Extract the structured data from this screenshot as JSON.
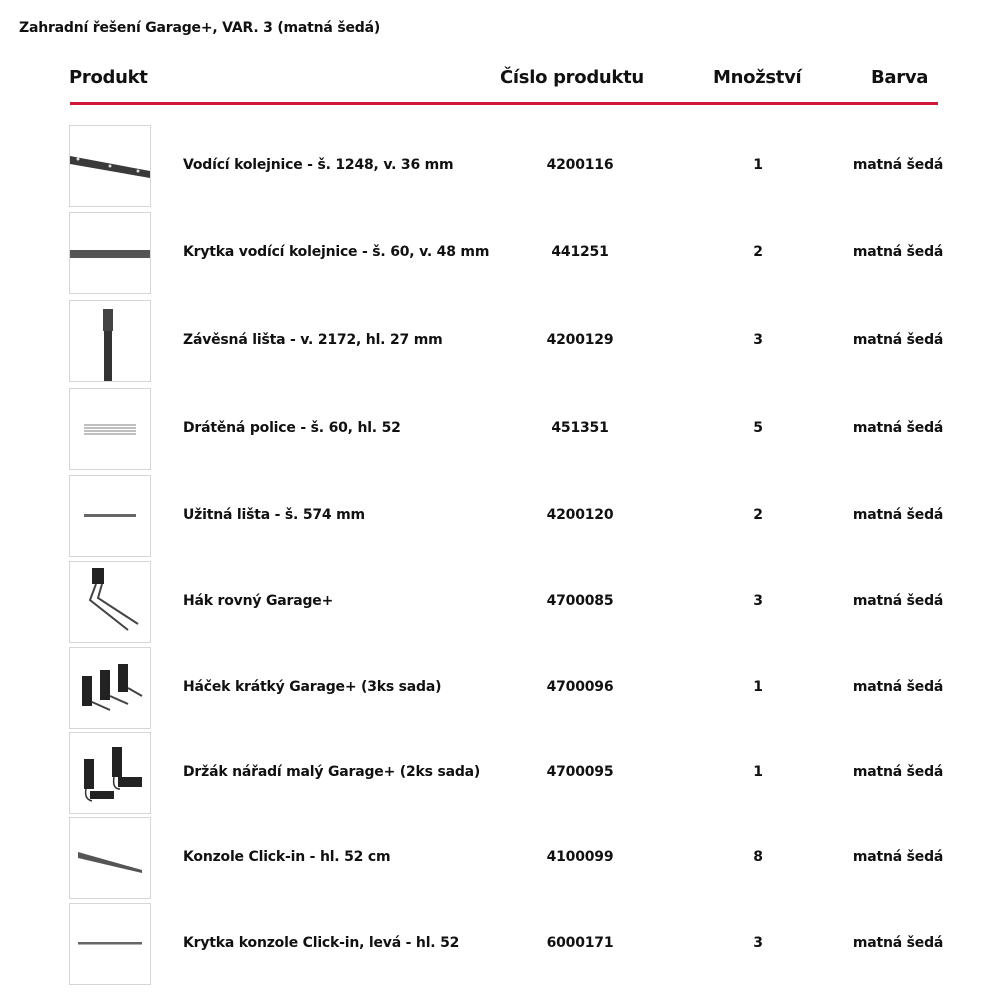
{
  "title": "Zahradní řešení Garage+, VAR. 3 (matná šedá)",
  "headers": {
    "product": "Produkt",
    "number": "Číslo produktu",
    "quantity": "Množství",
    "color": "Barva"
  },
  "accent_color": "#d0193a",
  "items": [
    {
      "name": "Vodící kolejnice - š. 1248, v. 36 mm",
      "number": "4200116",
      "quantity": "1",
      "color": "matná šedá",
      "icon": "rail"
    },
    {
      "name": "Krytka vodící kolejnice - š. 60, v. 48 mm",
      "number": "441251",
      "quantity": "2",
      "color": "matná šedá",
      "icon": "rail-cover"
    },
    {
      "name": "Závěsná lišta - v. 2172, hl. 27 mm",
      "number": "4200129",
      "quantity": "3",
      "color": "matná šedá",
      "icon": "vertical-bar"
    },
    {
      "name": "Drátěná police - š. 60, hl. 52",
      "number": "451351",
      "quantity": "5",
      "color": "matná šedá",
      "icon": "wire-shelf"
    },
    {
      "name": "Užitná lišta - š. 574 mm",
      "number": "4200120",
      "quantity": "2",
      "color": "matná šedá",
      "icon": "utility-bar"
    },
    {
      "name": "Hák rovný Garage+",
      "number": "4700085",
      "quantity": "3",
      "color": "matná šedá",
      "icon": "straight-hook"
    },
    {
      "name": "Háček krátký Garage+ (3ks sada)",
      "number": "4700096",
      "quantity": "1",
      "color": "matná šedá",
      "icon": "short-hooks"
    },
    {
      "name": "Držák nářadí malý Garage+ (2ks sada)",
      "number": "4700095",
      "quantity": "1",
      "color": "matná šedá",
      "icon": "tool-holder"
    },
    {
      "name": "Konzole Click-in - hl. 52 cm",
      "number": "4100099",
      "quantity": "8",
      "color": "matná šedá",
      "icon": "bracket"
    },
    {
      "name": "Krytka konzole Click-in, levá - hl. 52",
      "number": "6000171",
      "quantity": "3",
      "color": "matná šedá",
      "icon": "bracket-cover"
    }
  ]
}
